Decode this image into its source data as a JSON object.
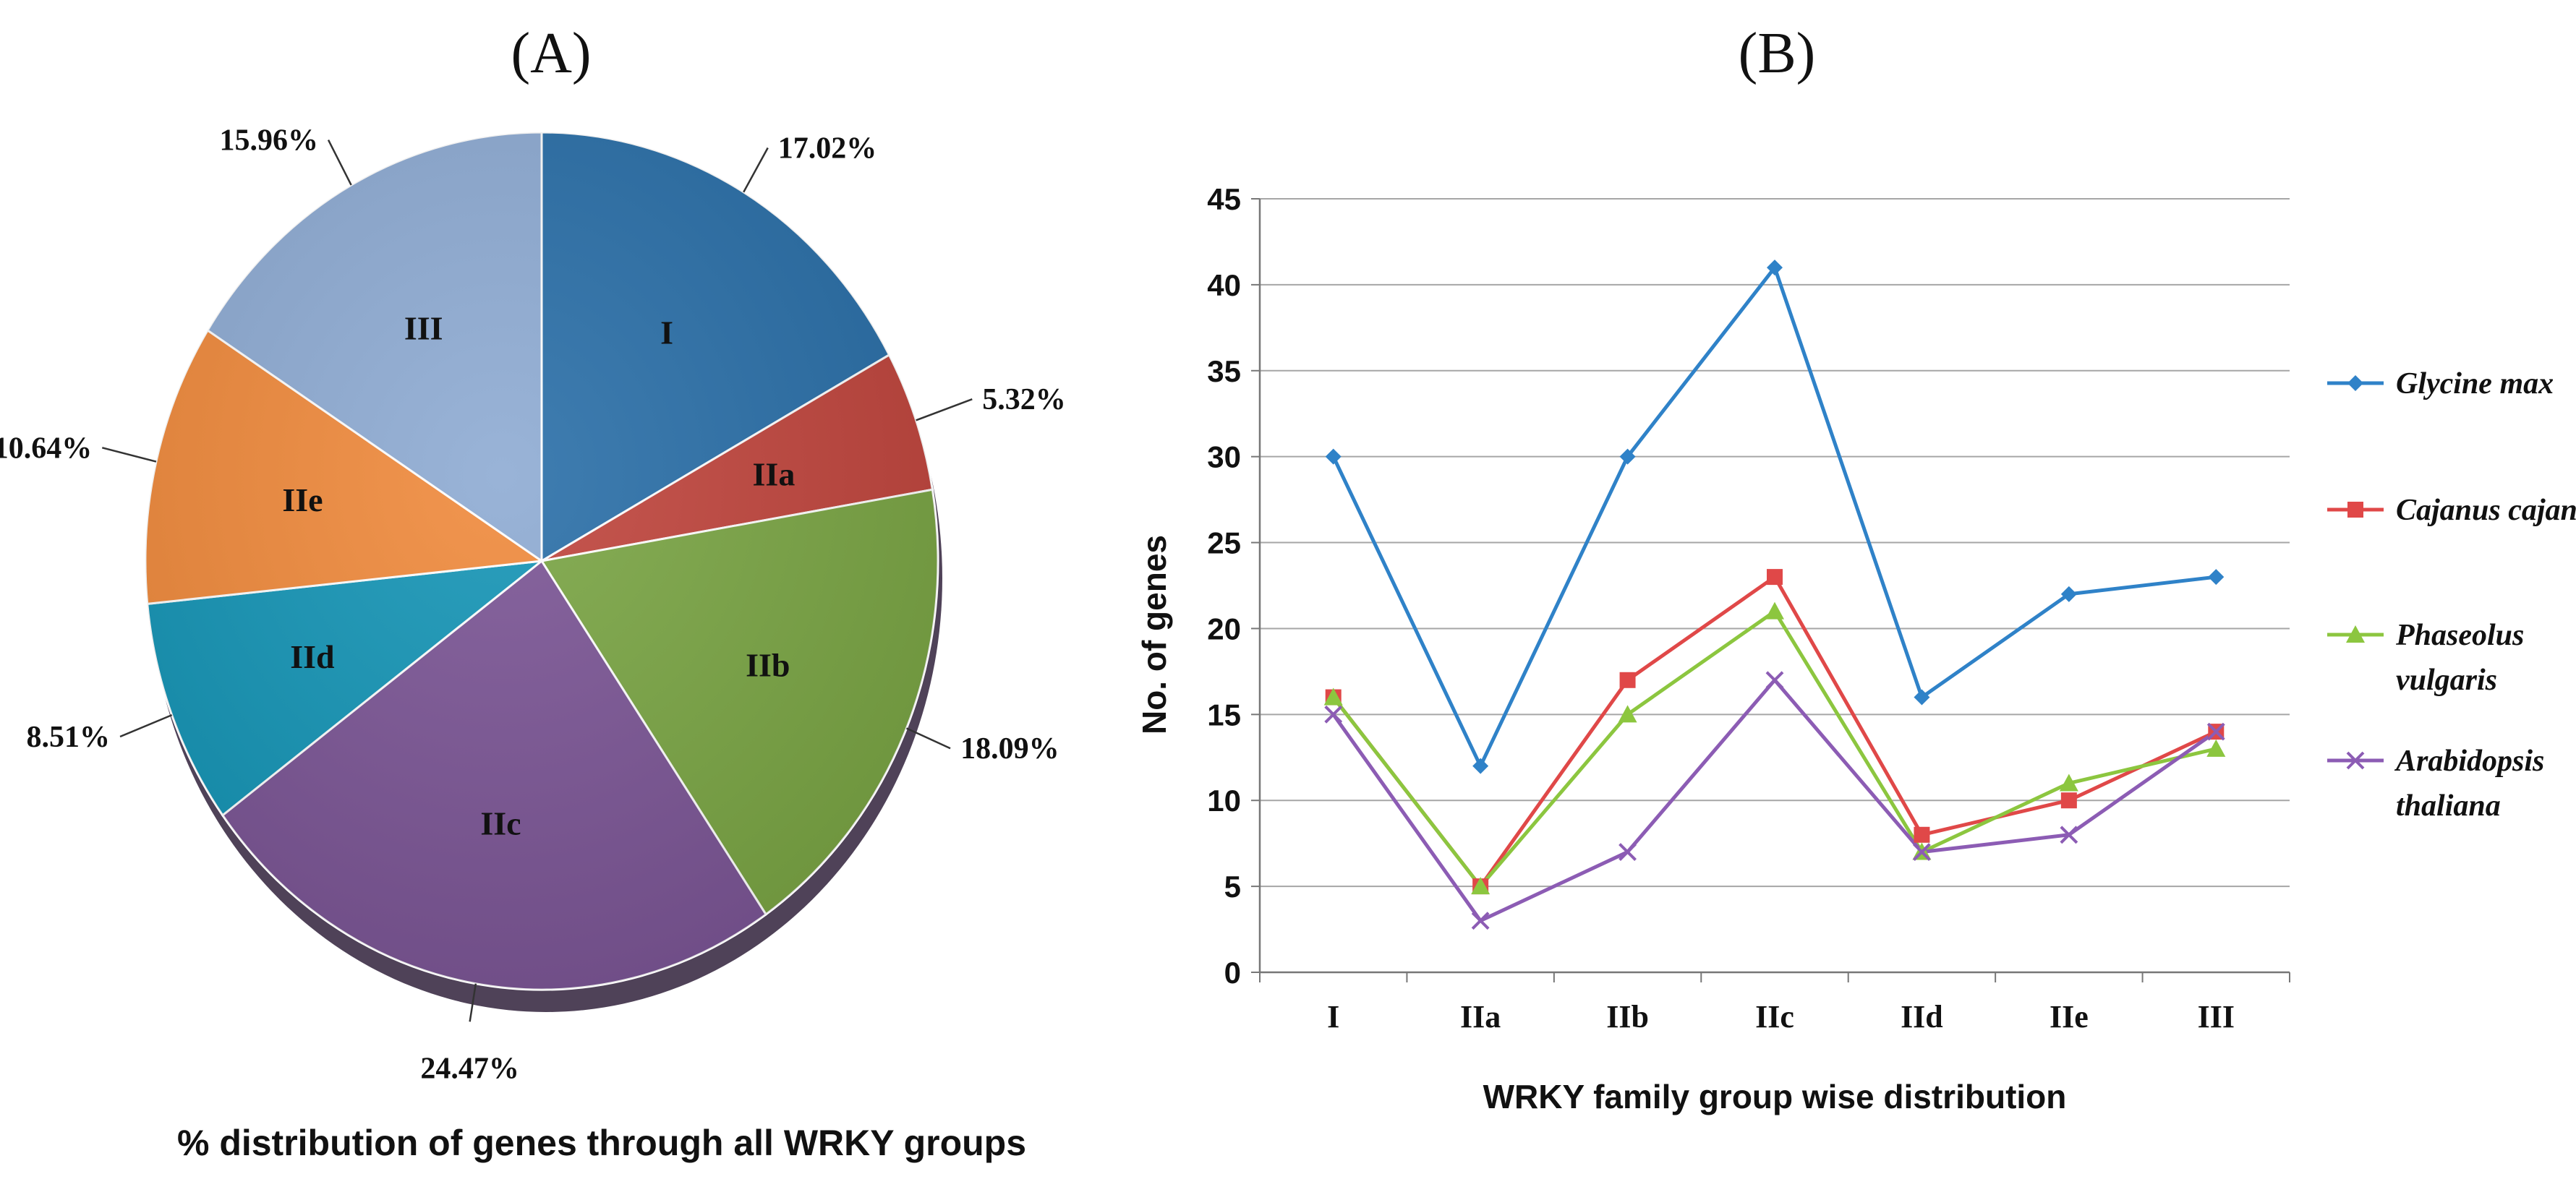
{
  "panel_a": {
    "panel_label": "(A)",
    "caption": "% distribution of genes through all WRKY groups"
  },
  "panel_b": {
    "panel_label": "(B)"
  },
  "chart_data": [
    {
      "type": "pie",
      "title": "% distribution of genes through all WRKY groups",
      "slices": [
        {
          "label": "I",
          "value": 17.02,
          "value_label": "17.02%",
          "color": "#2a6fa8"
        },
        {
          "label": "IIa",
          "value": 5.32,
          "value_label": "5.32%",
          "color": "#c0453d"
        },
        {
          "label": "IIb",
          "value": 18.09,
          "value_label": "18.09%",
          "color": "#7aa544"
        },
        {
          "label": "IIc",
          "value": 24.47,
          "value_label": "24.47%",
          "color": "#7b5595"
        },
        {
          "label": "IId",
          "value": 8.51,
          "value_label": "8.51%",
          "color": "#1595b6"
        },
        {
          "label": "IIe",
          "value": 10.64,
          "value_label": "10.64%",
          "color": "#f08a3c"
        },
        {
          "label": "III",
          "value": 15.96,
          "value_label": "15.96%",
          "color": "#8eabd3"
        }
      ]
    },
    {
      "type": "line",
      "xlabel": "WRKY family group wise distribution",
      "ylabel": "No. of genes",
      "ylim": [
        0,
        45
      ],
      "yticks": [
        0,
        5,
        10,
        15,
        20,
        25,
        30,
        35,
        40,
        45
      ],
      "grid": true,
      "legend_position": "right",
      "categories": [
        "I",
        "IIa",
        "IIb",
        "IIc",
        "IId",
        "IIe",
        "III"
      ],
      "series": [
        {
          "name": "Glycine max",
          "name_lines": [
            "Glycine max"
          ],
          "color": "#2f82c8",
          "marker": "diamond",
          "values": [
            30,
            12,
            30,
            41,
            16,
            22,
            23
          ]
        },
        {
          "name": "Cajanus cajan",
          "name_lines": [
            "Cajanus cajan"
          ],
          "color": "#e04848",
          "marker": "square",
          "values": [
            16,
            5,
            17,
            23,
            8,
            10,
            14
          ]
        },
        {
          "name": "Phaseolus vulgaris",
          "name_lines": [
            "Phaseolus",
            "vulgaris"
          ],
          "color": "#8cc63f",
          "marker": "triangle",
          "values": [
            16,
            5,
            15,
            21,
            7,
            11,
            13
          ]
        },
        {
          "name": "Arabidopsis thaliana",
          "name_lines": [
            "Arabidopsis",
            "thaliana"
          ],
          "color": "#8c5cb4",
          "marker": "x",
          "values": [
            15,
            3,
            7,
            17,
            7,
            8,
            14
          ]
        }
      ]
    }
  ]
}
